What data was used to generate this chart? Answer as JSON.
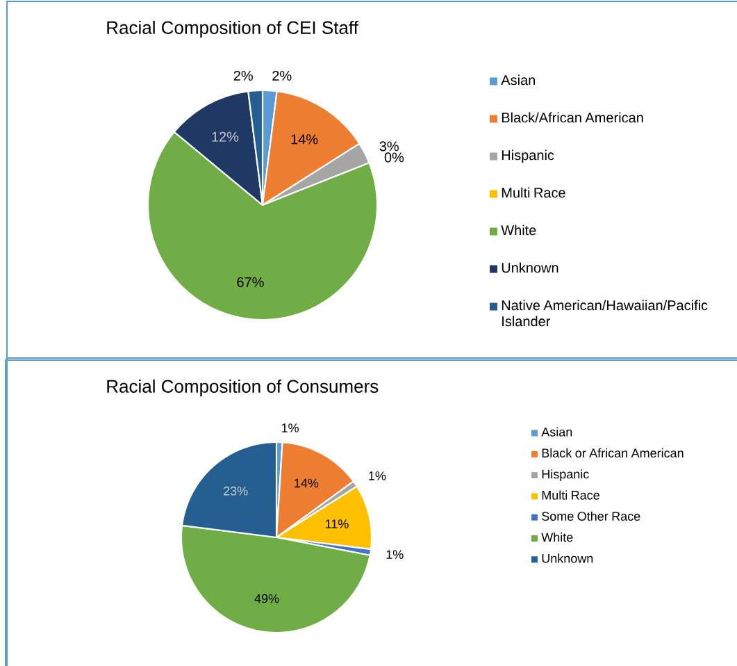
{
  "chart_data": [
    {
      "type": "pie",
      "title": "Racial Composition of CEI Staff",
      "categories": [
        "Asian",
        "Black/African American",
        "Hispanic",
        "Multi Race",
        "White",
        "Unknown",
        "Native American/Hawaiian/Pacific Islander"
      ],
      "values": [
        2,
        14,
        3,
        0,
        67,
        12,
        2
      ],
      "colors": [
        "#5b9bd5",
        "#ed7d31",
        "#a5a5a5",
        "#ffc000",
        "#70ad47",
        "#203864",
        "#255e91"
      ],
      "value_labels": [
        "2%",
        "14%",
        "3%",
        "0%",
        "67%",
        "12%",
        "2%"
      ],
      "legend": "right"
    },
    {
      "type": "pie",
      "title": "Racial Composition of Consumers",
      "categories": [
        "Asian",
        "Black or African American",
        "Hispanic",
        "Multi Race",
        "Some Other Race",
        "White",
        "Unknown"
      ],
      "values": [
        1,
        14,
        1,
        11,
        1,
        49,
        23
      ],
      "colors": [
        "#5b9bd5",
        "#ed7d31",
        "#a5a5a5",
        "#ffc000",
        "#4472c4",
        "#70ad47",
        "#255e91"
      ],
      "value_labels": [
        "1%",
        "14%",
        "1%",
        "11%",
        "1%",
        "49%",
        "23%"
      ],
      "legend": "right"
    }
  ]
}
